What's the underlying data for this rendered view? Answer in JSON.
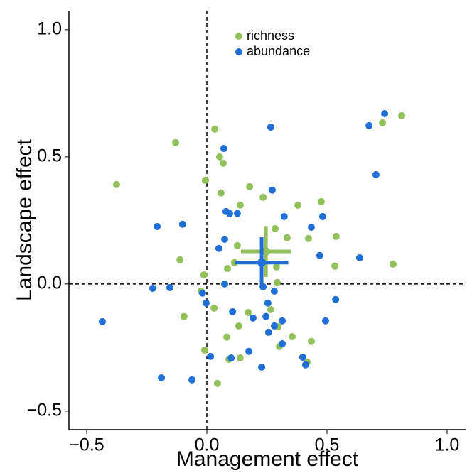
{
  "chart_data": {
    "type": "scatter",
    "x_label": "Management effect",
    "y_label": "Landscape effect",
    "xlim": [
      -0.574,
      1.08
    ],
    "ylim": [
      -0.573,
      1.075
    ],
    "xticks": [
      {
        "value": -0.5,
        "label": "−0.5"
      },
      {
        "value": 0,
        "label": "0.0"
      },
      0.5,
      {
        "value": 1,
        "label": "1.0"
      }
    ],
    "yticks": [
      {
        "value": -0.5,
        "label": "−0.5"
      },
      {
        "value": 0,
        "label": "0.0"
      },
      0.5,
      {
        "value": 1,
        "label": "1.0"
      }
    ],
    "zero_lines": true,
    "legend": "top center",
    "series": [
      {
        "name": "richness",
        "color": "#92c05a",
        "x": [
          -0.376,
          -0.13,
          0.033,
          0.053,
          0.068,
          -0.006,
          0.811,
          0.731,
          0.178,
          0.234,
          0.059,
          0.139,
          0.379,
          0.476,
          0.284,
          0.334,
          0.423,
          0.538,
          0.127,
          -0.112,
          0.086,
          0.115,
          0.29,
          0.533,
          0.775,
          0.293,
          -0.012,
          -0.024,
          -0.095,
          0.03,
          0.172,
          0.266,
          0.133,
          0.296,
          0.083,
          0.355,
          0.302,
          0.435,
          -0.009,
          0.092,
          0.139,
          0.417,
          0.044
        ],
        "y": [
          0.391,
          0.556,
          0.609,
          0.5,
          0.475,
          0.408,
          0.662,
          0.634,
          0.383,
          0.341,
          0.358,
          0.31,
          0.31,
          0.324,
          0.218,
          0.182,
          0.179,
          0.187,
          0.151,
          0.095,
          0.061,
          0.084,
          0.067,
          0.07,
          0.078,
          0.006,
          0.036,
          -0.028,
          -0.128,
          -0.095,
          -0.112,
          -0.101,
          -0.165,
          -0.168,
          -0.209,
          -0.207,
          -0.246,
          -0.226,
          -0.26,
          -0.296,
          -0.291,
          -0.307,
          -0.391
        ],
        "mean": {
          "x": 0.246,
          "y": 0.128,
          "xerr": 0.104,
          "yerr": 0.1
        }
      },
      {
        "name": "abundance",
        "color": "#1f6fd6",
        "x": [
          0.74,
          0.675,
          0.266,
          0.071,
          0.704,
          0.272,
          0.08,
          0.095,
          0.127,
          0.322,
          0.482,
          -0.207,
          -0.101,
          0.435,
          0.074,
          0.05,
          0.47,
          0.636,
          0.074,
          -0.225,
          -0.154,
          0.234,
          0.281,
          -0.018,
          -0.003,
          0.254,
          0.536,
          0.107,
          -0.435,
          0.246,
          0.192,
          0.314,
          0.494,
          0.281,
          0.257,
          0.314,
          0.175,
          0.015,
          0.101,
          0.399,
          0.411,
          0.228,
          -0.189,
          -0.062
        ],
        "y": [
          0.67,
          0.623,
          0.617,
          0.533,
          0.43,
          0.369,
          0.285,
          0.277,
          0.277,
          0.265,
          0.265,
          0.226,
          0.235,
          0.223,
          0.176,
          0.14,
          0.112,
          0.103,
          0.0,
          -0.017,
          -0.014,
          -0.011,
          -0.028,
          -0.036,
          -0.075,
          -0.075,
          -0.061,
          -0.109,
          -0.148,
          -0.128,
          -0.134,
          -0.145,
          -0.145,
          -0.165,
          -0.19,
          -0.235,
          -0.265,
          -0.285,
          -0.291,
          -0.288,
          -0.318,
          -0.327,
          -0.369,
          -0.377
        ],
        "mean": {
          "x": 0.228,
          "y": 0.084,
          "xerr": 0.111,
          "yerr": 0.1
        }
      }
    ]
  }
}
